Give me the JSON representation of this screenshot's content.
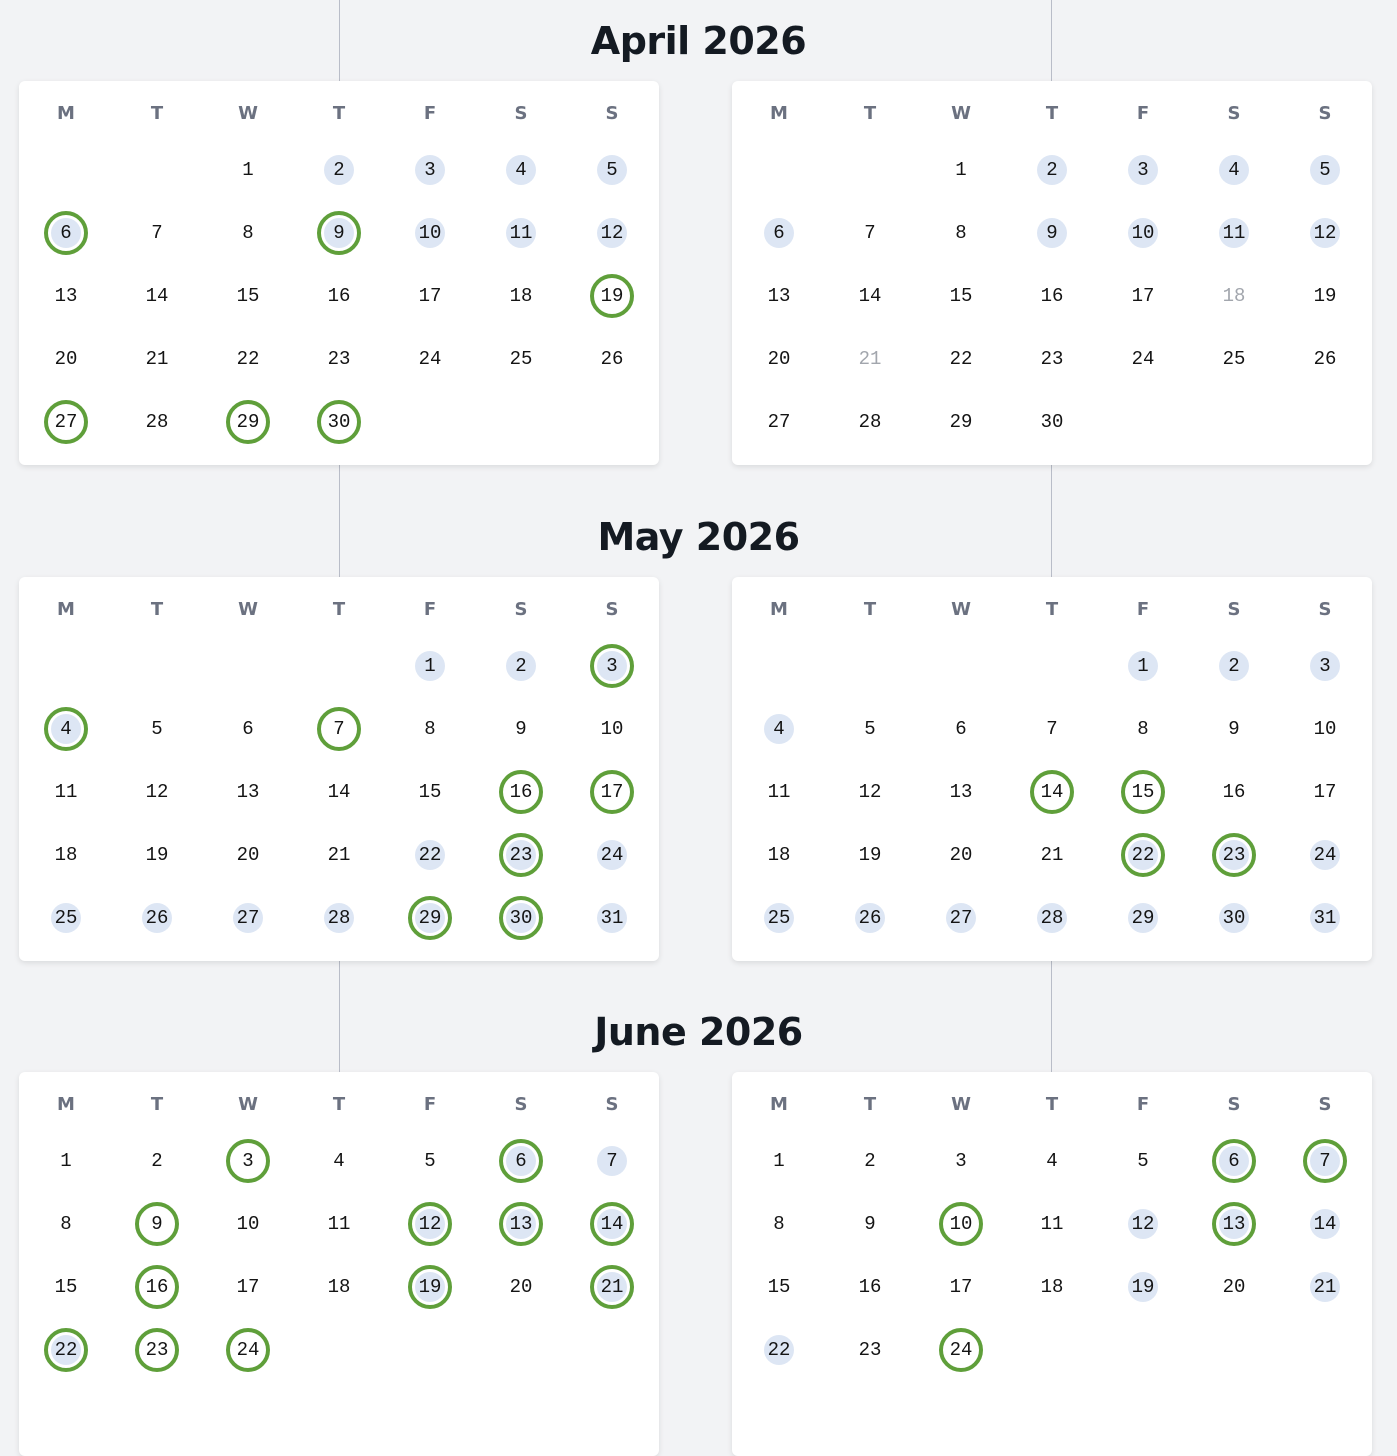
{
  "weekday_labels": [
    "M",
    "T",
    "W",
    "T",
    "F",
    "S",
    "S"
  ],
  "months": [
    {
      "title": "April 2026",
      "first_weekday": 2,
      "days_in_month": 30,
      "calendars": [
        {
          "highlighted": [
            2,
            3,
            4,
            5,
            6,
            9,
            10,
            11,
            12
          ],
          "circled": [
            6,
            9,
            19,
            27,
            29,
            30
          ],
          "dimmed": []
        },
        {
          "highlighted": [
            2,
            3,
            4,
            5,
            6,
            9,
            10,
            11,
            12
          ],
          "circled": [],
          "dimmed": [
            18,
            21
          ]
        }
      ]
    },
    {
      "title": "May 2026",
      "first_weekday": 4,
      "days_in_month": 31,
      "calendars": [
        {
          "highlighted": [
            1,
            2,
            3,
            4,
            22,
            23,
            24,
            25,
            26,
            27,
            28,
            29,
            30,
            31
          ],
          "circled": [
            3,
            4,
            7,
            16,
            17,
            23,
            29,
            30
          ],
          "dimmed": []
        },
        {
          "highlighted": [
            1,
            2,
            3,
            4,
            22,
            23,
            24,
            25,
            26,
            27,
            28,
            29,
            30,
            31
          ],
          "circled": [
            14,
            15,
            22,
            23
          ],
          "dimmed": []
        }
      ]
    },
    {
      "title": "June 2026",
      "first_weekday": 0,
      "days_in_month": 24,
      "calendars": [
        {
          "highlighted": [
            6,
            7,
            12,
            13,
            14,
            19,
            21,
            22
          ],
          "circled": [
            3,
            6,
            9,
            12,
            13,
            14,
            16,
            19,
            21,
            22,
            23,
            24
          ],
          "dimmed": []
        },
        {
          "highlighted": [
            6,
            7,
            12,
            13,
            14,
            19,
            21,
            22
          ],
          "circled": [
            6,
            7,
            10,
            13,
            24
          ],
          "dimmed": []
        }
      ]
    }
  ]
}
